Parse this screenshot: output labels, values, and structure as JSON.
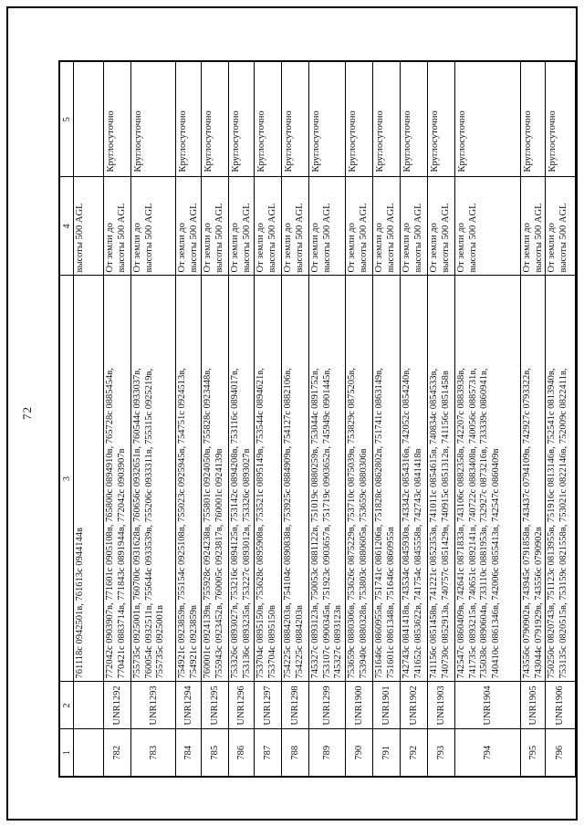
{
  "page": {
    "number": "72"
  },
  "table": {
    "column_headers": [
      "1",
      "2",
      "3",
      "4",
      "5"
    ],
    "rows": [
      {
        "num": "",
        "unr": "",
        "coords": [
          "761118с 0942501в, 761613с 0944144в"
        ],
        "altitude": [
          "высоты 500 AGL"
        ],
        "schedule": ""
      },
      {
        "num": "782",
        "unr": "UNR1292",
        "coords": [
          "772042с 0903907в, 771601с 0905108в, 765800с 0894910в, 765728с 0885454в,",
          "770421с 0883714в, 771843с 0891944в, 772042с 0903907в"
        ],
        "altitude": [
          "От земли до",
          "высоты 500 AGL"
        ],
        "schedule": "Круглосуточно"
      },
      {
        "num": "783",
        "unr": "UNR1293",
        "coords": [
          "755735с 0925001в, 760700с 0931628в, 760656с 0932651в, 760544с 0933037в,",
          "760054с 0932511в, 755644с 0933539в, 755206с 0933311в, 755315с 0925219в,",
          "755735с 0925001в"
        ],
        "altitude": [
          "От земли до",
          "высоты 500 AGL"
        ],
        "schedule": "Круглосуточно"
      },
      {
        "num": "784",
        "unr": "UNR1294",
        "coords": [
          "754921с 0923859в, 755154с 0925108в, 755023с 0925945в, 754751с 0924513в,",
          "754921с 0923859в"
        ],
        "altitude": [
          "От земли до",
          "высоты 500 AGL"
        ],
        "schedule": "Круглосуточно"
      },
      {
        "num": "785",
        "unr": "UNR1295",
        "coords": [
          "760001с 0924139в, 755928с 0924238в, 755801с 0924050в, 755828с 0923448в,",
          "755943с 0923452в, 760005с 0923817в, 760001с 0924139в"
        ],
        "altitude": [
          "От земли до",
          "высоты 500 AGL"
        ],
        "schedule": "Круглосуточно"
      },
      {
        "num": "786",
        "unr": "UNR1296",
        "coords": [
          "753326с 0893027в, 753216с 0894125в, 753142с 0894208в, 753116с 0894017в,",
          "753136с 0893235в, 753227с 0893012в, 753326с 0893027в"
        ],
        "altitude": [
          "От земли до",
          "высоты 500 AGL"
        ],
        "schedule": "Круглосуточно"
      },
      {
        "num": "787",
        "unr": "UNR1297",
        "coords": [
          "753704с 0895150в, 753628с 0895908в, 753521с 0895149в, 753544с 0894621в,",
          "753704с 0895150в"
        ],
        "altitude": [
          "От земли до",
          "высоты 500 AGL"
        ],
        "schedule": "Круглосуточно"
      },
      {
        "num": "788",
        "unr": "UNR1298",
        "coords": [
          "754225с 0884203в, 754104с 0890838в, 753925с 0884909в, 754127с 0882106в,",
          "754225с 0884203в"
        ],
        "altitude": [
          "От земли до",
          "высоты 500 AGL"
        ],
        "schedule": "Круглосуточно"
      },
      {
        "num": "789",
        "unr": "UNR1299",
        "coords": [
          "745327с 0893123в, 750053с 0881122в, 751019с 0880259в, 753044с 0891752в,",
          "753107с 0900345в, 751923с 0903657в, 751719с 0903652в, 745949с 0901445в,",
          "745327с 0893123в"
        ],
        "altitude": [
          "От земли до",
          "высоты 500 AGL"
        ],
        "schedule": "Круглосуточно"
      },
      {
        "num": "790",
        "unr": "UNR1900",
        "coords": [
          "753659с 0880306в, 753626с 0875229в, 753710с 0875039в, 753829с 0875205в,",
          "753940с 0880328в, 753803с 0880605в, 753659с 0880306в"
        ],
        "altitude": [
          "От земли до",
          "высоты 500 AGL"
        ],
        "schedule": "Круглосуточно"
      },
      {
        "num": "791",
        "unr": "UNR1901",
        "coords": [
          "751646с 0860955в, 751741с 0861206в, 751828с 0862802в, 751741с 0863149в,",
          "751601с 0861348в, 751646с 0860955в"
        ],
        "altitude": [
          "От земли до",
          "высоты 500 AGL"
        ],
        "schedule": "Круглосуточно"
      },
      {
        "num": "792",
        "unr": "UNR1902",
        "coords": [
          "742743с 0841418в, 743534с 0845930в, 743342с 0854316в, 742052с 0854240в,",
          "741652с 0853622в, 741754с 0845558в, 742743с 0841418в"
        ],
        "altitude": [
          "От земли до",
          "высоты 500 AGL"
        ],
        "schedule": "Круглосуточно"
      },
      {
        "num": "793",
        "unr": "UNR1903",
        "coords": [
          "741156с 0851458в, 741221с 0852353в, 741011с 0854615в, 740834с 0854533в,",
          "740730с 0852913в, 740757с 0851429в, 740915с 0851312в, 741156с 0851458в"
        ],
        "altitude": [
          "От земли до",
          "высоты 500 AGL"
        ],
        "schedule": "Круглосуточно"
      },
      {
        "num": "794",
        "unr": "UNR1904",
        "coords": [
          "742547с 0860409в, 742641с 0871833в, 743106с 0882358в, 742207с 0883938в,",
          "741735с 0893215в, 740651с 0892141в, 740722с 0883408в, 740056с 0885731в,",
          "735038с 0890604в, 733110с 0881953в, 732927с 0873216в, 733339с 0860941в,",
          "740410с 0861346в, 742006с 0855413в, 742547с 0860409в"
        ],
        "altitude": [
          "От земли до",
          "высоты 500 AGL"
        ],
        "schedule": "Круглосуточно"
      },
      {
        "num": "795",
        "unr": "UNR1905",
        "coords": [
          "743556с 0790902в, 743945с 0791858в, 743437с 0794109в, 742927с 0793322в,",
          "743044с 0791929в, 743556с 0790902в"
        ],
        "altitude": [
          "От земли до",
          "высоты 500 AGL"
        ],
        "schedule": "Круглосуточно"
      },
      {
        "num": "796",
        "unr": "UNR1906",
        "coords": [
          "750250с 0820743в, 751123с 0813955в, 751916с 0813146в, 752541с 0813940в,",
          "753135с 0820515в, 753159с 0821558в, 753021с 0822146в, 752009с 0822411в,"
        ],
        "altitude": [
          "От земли до",
          "высоты 500 AGL"
        ],
        "schedule": "Круглосуточно"
      }
    ]
  }
}
